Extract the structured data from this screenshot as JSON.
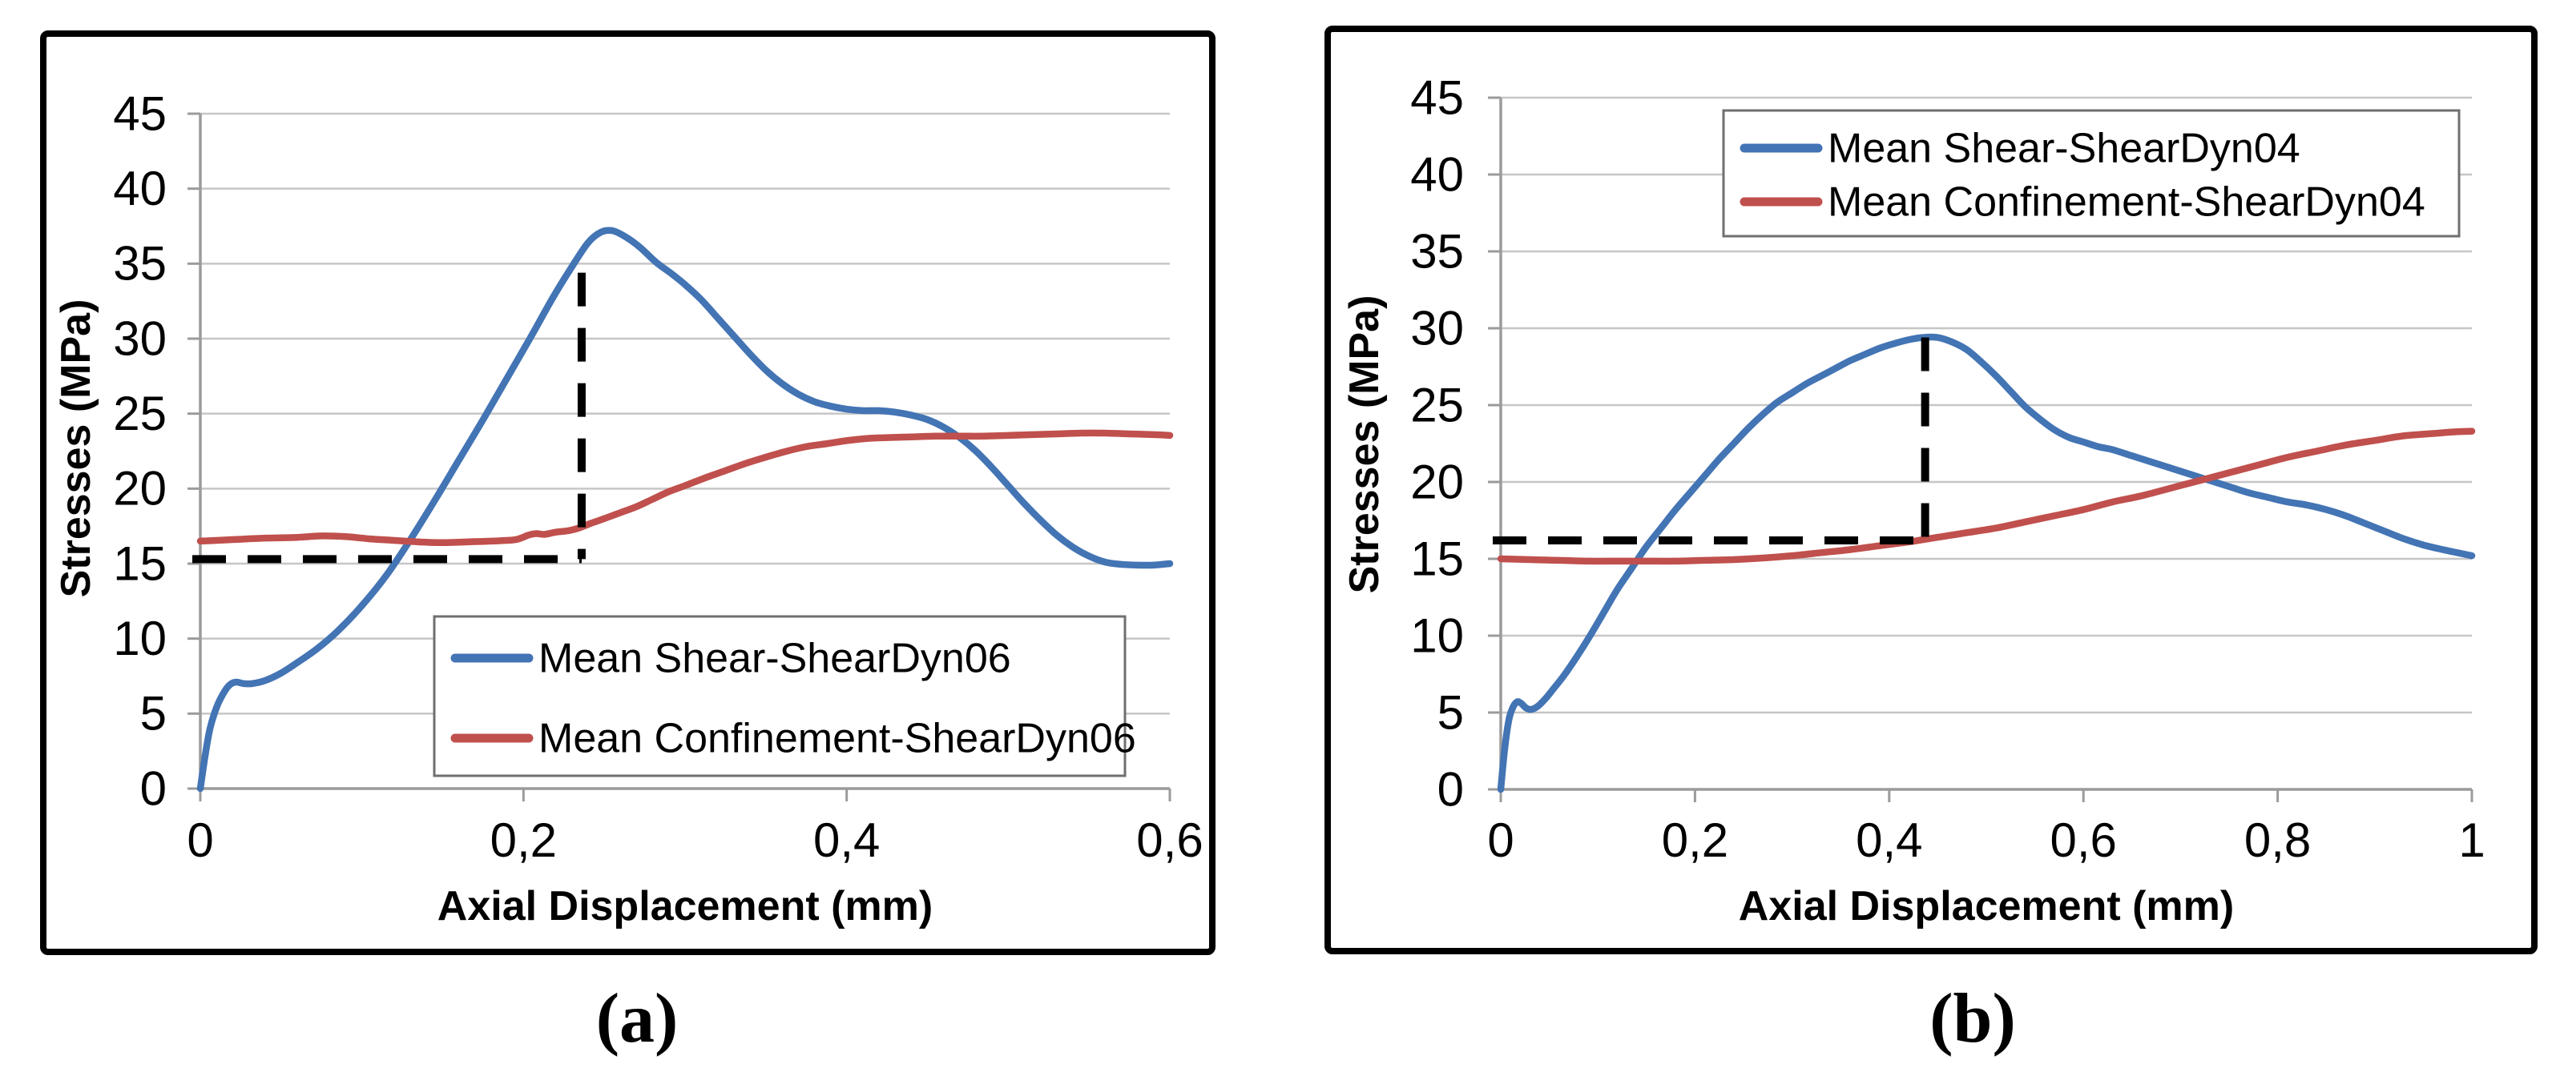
{
  "palette": {
    "shear_blue": "#4374B4",
    "confinement_red": "#C0504D",
    "gridline": "#C6C6C6",
    "axis": "#9B9B9B",
    "guide": "#000000",
    "legend_border": "#6F6F6F",
    "text": "#000000"
  },
  "chart_data": [
    {
      "id": "a",
      "type": "line",
      "caption": "(a)",
      "xlabel": "Axial Displacement (mm)",
      "ylabel": "Stresses (MPa)",
      "xlim": [
        0,
        0.6
      ],
      "ylim": [
        0,
        45
      ],
      "grid": true,
      "legend_position": "lower-center-inside",
      "x_ticks": {
        "values": [
          0,
          0.2,
          0.4,
          0.6
        ],
        "labels": [
          "0",
          "0,2",
          "0,4",
          "0,6"
        ]
      },
      "y_ticks": {
        "values": [
          0,
          5,
          10,
          15,
          20,
          25,
          30,
          35,
          40,
          45
        ],
        "labels": [
          "0",
          "5",
          "10",
          "15",
          "20",
          "25",
          "30",
          "35",
          "40",
          "45"
        ]
      },
      "series": [
        {
          "name": "Mean Shear-ShearDyn06",
          "color": "#4374B4",
          "points": [
            [
              0,
              0
            ],
            [
              0.003,
              2.2
            ],
            [
              0.006,
              4.0
            ],
            [
              0.01,
              5.4
            ],
            [
              0.014,
              6.3
            ],
            [
              0.018,
              6.9
            ],
            [
              0.022,
              7.1
            ],
            [
              0.027,
              7.0
            ],
            [
              0.032,
              7.0
            ],
            [
              0.04,
              7.2
            ],
            [
              0.05,
              7.7
            ],
            [
              0.06,
              8.4
            ],
            [
              0.072,
              9.3
            ],
            [
              0.085,
              10.5
            ],
            [
              0.1,
              12.2
            ],
            [
              0.115,
              14.2
            ],
            [
              0.13,
              16.6
            ],
            [
              0.145,
              19.2
            ],
            [
              0.16,
              21.9
            ],
            [
              0.175,
              24.6
            ],
            [
              0.19,
              27.4
            ],
            [
              0.205,
              30.2
            ],
            [
              0.218,
              32.7
            ],
            [
              0.23,
              34.8
            ],
            [
              0.24,
              36.4
            ],
            [
              0.248,
              37.1
            ],
            [
              0.255,
              37.2
            ],
            [
              0.263,
              36.8
            ],
            [
              0.272,
              36.1
            ],
            [
              0.282,
              35.1
            ],
            [
              0.292,
              34.3
            ],
            [
              0.3,
              33.6
            ],
            [
              0.31,
              32.6
            ],
            [
              0.32,
              31.4
            ],
            [
              0.33,
              30.2
            ],
            [
              0.34,
              29.0
            ],
            [
              0.35,
              27.9
            ],
            [
              0.36,
              27.0
            ],
            [
              0.37,
              26.3
            ],
            [
              0.38,
              25.8
            ],
            [
              0.39,
              25.5
            ],
            [
              0.4,
              25.3
            ],
            [
              0.41,
              25.2
            ],
            [
              0.42,
              25.2
            ],
            [
              0.43,
              25.1
            ],
            [
              0.44,
              24.9
            ],
            [
              0.45,
              24.6
            ],
            [
              0.46,
              24.1
            ],
            [
              0.47,
              23.4
            ],
            [
              0.48,
              22.5
            ],
            [
              0.49,
              21.4
            ],
            [
              0.5,
              20.2
            ],
            [
              0.51,
              19.0
            ],
            [
              0.52,
              17.9
            ],
            [
              0.53,
              16.9
            ],
            [
              0.54,
              16.1
            ],
            [
              0.55,
              15.5
            ],
            [
              0.56,
              15.1
            ],
            [
              0.57,
              14.95
            ],
            [
              0.58,
              14.9
            ],
            [
              0.59,
              14.9
            ],
            [
              0.6,
              15.0
            ]
          ]
        },
        {
          "name": "Mean Confinement-ShearDyn06",
          "color": "#C0504D",
          "points": [
            [
              0,
              16.5
            ],
            [
              0.02,
              16.6
            ],
            [
              0.04,
              16.7
            ],
            [
              0.06,
              16.75
            ],
            [
              0.075,
              16.85
            ],
            [
              0.09,
              16.8
            ],
            [
              0.105,
              16.65
            ],
            [
              0.12,
              16.55
            ],
            [
              0.135,
              16.45
            ],
            [
              0.15,
              16.4
            ],
            [
              0.165,
              16.45
            ],
            [
              0.18,
              16.5
            ],
            [
              0.195,
              16.6
            ],
            [
              0.203,
              16.9
            ],
            [
              0.208,
              17.0
            ],
            [
              0.213,
              16.95
            ],
            [
              0.22,
              17.1
            ],
            [
              0.228,
              17.2
            ],
            [
              0.235,
              17.4
            ],
            [
              0.242,
              17.7
            ],
            [
              0.25,
              18.0
            ],
            [
              0.26,
              18.4
            ],
            [
              0.27,
              18.8
            ],
            [
              0.28,
              19.3
            ],
            [
              0.29,
              19.8
            ],
            [
              0.3,
              20.2
            ],
            [
              0.312,
              20.7
            ],
            [
              0.325,
              21.2
            ],
            [
              0.338,
              21.7
            ],
            [
              0.35,
              22.1
            ],
            [
              0.363,
              22.5
            ],
            [
              0.375,
              22.8
            ],
            [
              0.388,
              23.0
            ],
            [
              0.4,
              23.2
            ],
            [
              0.413,
              23.35
            ],
            [
              0.425,
              23.4
            ],
            [
              0.44,
              23.45
            ],
            [
              0.455,
              23.5
            ],
            [
              0.47,
              23.5
            ],
            [
              0.485,
              23.5
            ],
            [
              0.5,
              23.55
            ],
            [
              0.515,
              23.6
            ],
            [
              0.53,
              23.65
            ],
            [
              0.545,
              23.7
            ],
            [
              0.56,
              23.7
            ],
            [
              0.575,
              23.65
            ],
            [
              0.59,
              23.6
            ],
            [
              0.6,
              23.55
            ]
          ]
        }
      ],
      "dashed_guides": {
        "horizontal": {
          "y": 15.3,
          "x0": 0,
          "x1": 0.236
        },
        "vertical": {
          "x": 0.236,
          "y0": 15.3,
          "y1": 34.4
        }
      }
    },
    {
      "id": "b",
      "type": "line",
      "caption": "(b)",
      "xlabel": "Axial Displacement (mm)",
      "ylabel": "Stresses (MPa)",
      "xlim": [
        0,
        1
      ],
      "ylim": [
        0,
        45
      ],
      "grid": true,
      "legend_position": "upper-center-inside",
      "x_ticks": {
        "values": [
          0,
          0.2,
          0.4,
          0.6,
          0.8,
          1
        ],
        "labels": [
          "0",
          "0,2",
          "0,4",
          "0,6",
          "0,8",
          "1"
        ]
      },
      "y_ticks": {
        "values": [
          0,
          5,
          10,
          15,
          20,
          25,
          30,
          35,
          40,
          45
        ],
        "labels": [
          "0",
          "5",
          "10",
          "15",
          "20",
          "25",
          "30",
          "35",
          "40",
          "45"
        ]
      },
      "series": [
        {
          "name": "Mean Shear-ShearDyn04",
          "color": "#4374B4",
          "points": [
            [
              0,
              0
            ],
            [
              0.003,
              2.0
            ],
            [
              0.006,
              3.6
            ],
            [
              0.009,
              4.7
            ],
            [
              0.013,
              5.4
            ],
            [
              0.017,
              5.7
            ],
            [
              0.021,
              5.6
            ],
            [
              0.026,
              5.3
            ],
            [
              0.031,
              5.2
            ],
            [
              0.038,
              5.4
            ],
            [
              0.046,
              5.9
            ],
            [
              0.055,
              6.6
            ],
            [
              0.065,
              7.4
            ],
            [
              0.078,
              8.6
            ],
            [
              0.092,
              10.0
            ],
            [
              0.106,
              11.5
            ],
            [
              0.12,
              13.0
            ],
            [
              0.135,
              14.4
            ],
            [
              0.15,
              15.8
            ],
            [
              0.165,
              17.0
            ],
            [
              0.18,
              18.2
            ],
            [
              0.195,
              19.3
            ],
            [
              0.21,
              20.4
            ],
            [
              0.225,
              21.5
            ],
            [
              0.24,
              22.5
            ],
            [
              0.255,
              23.5
            ],
            [
              0.27,
              24.4
            ],
            [
              0.285,
              25.2
            ],
            [
              0.3,
              25.8
            ],
            [
              0.315,
              26.4
            ],
            [
              0.33,
              26.9
            ],
            [
              0.345,
              27.4
            ],
            [
              0.36,
              27.9
            ],
            [
              0.375,
              28.3
            ],
            [
              0.39,
              28.7
            ],
            [
              0.405,
              29.0
            ],
            [
              0.42,
              29.25
            ],
            [
              0.435,
              29.4
            ],
            [
              0.45,
              29.4
            ],
            [
              0.465,
              29.1
            ],
            [
              0.48,
              28.6
            ],
            [
              0.495,
              27.8
            ],
            [
              0.51,
              26.9
            ],
            [
              0.525,
              25.9
            ],
            [
              0.54,
              24.9
            ],
            [
              0.555,
              24.1
            ],
            [
              0.57,
              23.4
            ],
            [
              0.585,
              22.9
            ],
            [
              0.6,
              22.6
            ],
            [
              0.615,
              22.3
            ],
            [
              0.63,
              22.1
            ],
            [
              0.65,
              21.7
            ],
            [
              0.67,
              21.3
            ],
            [
              0.69,
              20.9
            ],
            [
              0.71,
              20.5
            ],
            [
              0.73,
              20.1
            ],
            [
              0.75,
              19.7
            ],
            [
              0.77,
              19.3
            ],
            [
              0.79,
              19.0
            ],
            [
              0.81,
              18.7
            ],
            [
              0.83,
              18.5
            ],
            [
              0.85,
              18.2
            ],
            [
              0.87,
              17.8
            ],
            [
              0.89,
              17.3
            ],
            [
              0.91,
              16.8
            ],
            [
              0.93,
              16.3
            ],
            [
              0.95,
              15.9
            ],
            [
              0.97,
              15.6
            ],
            [
              0.985,
              15.4
            ],
            [
              1,
              15.2
            ]
          ]
        },
        {
          "name": "Mean Confinement-ShearDyn04",
          "color": "#C0504D",
          "points": [
            [
              0,
              15.0
            ],
            [
              0.03,
              14.95
            ],
            [
              0.06,
              14.9
            ],
            [
              0.09,
              14.85
            ],
            [
              0.12,
              14.85
            ],
            [
              0.15,
              14.85
            ],
            [
              0.18,
              14.85
            ],
            [
              0.21,
              14.9
            ],
            [
              0.24,
              14.95
            ],
            [
              0.27,
              15.05
            ],
            [
              0.3,
              15.2
            ],
            [
              0.33,
              15.4
            ],
            [
              0.36,
              15.6
            ],
            [
              0.39,
              15.85
            ],
            [
              0.42,
              16.1
            ],
            [
              0.44,
              16.3
            ],
            [
              0.46,
              16.5
            ],
            [
              0.48,
              16.7
            ],
            [
              0.51,
              17.0
            ],
            [
              0.54,
              17.4
            ],
            [
              0.57,
              17.8
            ],
            [
              0.6,
              18.2
            ],
            [
              0.63,
              18.7
            ],
            [
              0.66,
              19.1
            ],
            [
              0.69,
              19.6
            ],
            [
              0.72,
              20.1
            ],
            [
              0.75,
              20.6
            ],
            [
              0.78,
              21.1
            ],
            [
              0.81,
              21.6
            ],
            [
              0.84,
              22.0
            ],
            [
              0.87,
              22.4
            ],
            [
              0.9,
              22.7
            ],
            [
              0.93,
              23.0
            ],
            [
              0.96,
              23.15
            ],
            [
              0.98,
              23.25
            ],
            [
              1,
              23.3
            ]
          ]
        }
      ],
      "dashed_guides": {
        "horizontal": {
          "y": 16.2,
          "x0": 0,
          "x1": 0.437
        },
        "vertical": {
          "x": 0.437,
          "y0": 16.2,
          "y1": 29.4
        }
      }
    }
  ]
}
